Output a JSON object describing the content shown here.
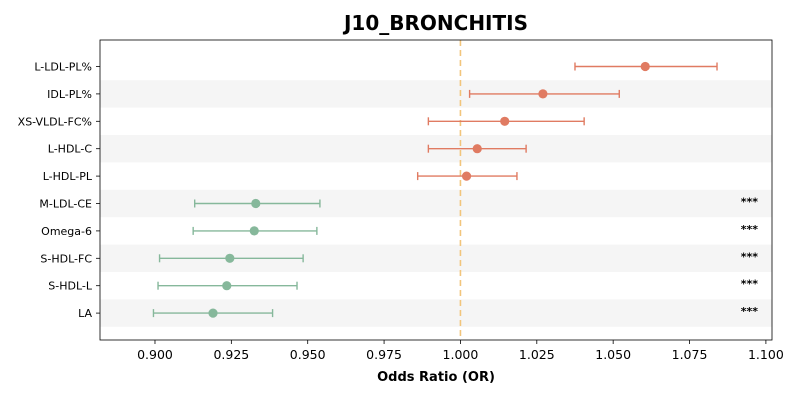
{
  "chart_data": {
    "type": "forest",
    "title": "J10_BRONCHITIS",
    "xlabel": "Odds Ratio (OR)",
    "ylabel": "",
    "xlim": [
      0.882,
      1.102
    ],
    "xticks": [
      "0.900",
      "0.925",
      "0.950",
      "0.975",
      "1.000",
      "1.025",
      "1.050",
      "1.075",
      "1.100"
    ],
    "reference_line": 1.0,
    "grid": false,
    "colors": {
      "positive": "#e07b62",
      "negative": "#86b89b",
      "reference": "#f2c57c",
      "band": "#f5f5f5"
    },
    "rows": [
      {
        "label": "L-LDL-PL%",
        "or": 1.0605,
        "lo": 1.0375,
        "hi": 1.084,
        "sig": ""
      },
      {
        "label": "IDL-PL%",
        "or": 1.027,
        "lo": 1.003,
        "hi": 1.052,
        "sig": ""
      },
      {
        "label": "XS-VLDL-FC%",
        "or": 1.0145,
        "lo": 0.9895,
        "hi": 1.0405,
        "sig": ""
      },
      {
        "label": "L-HDL-C",
        "or": 1.0055,
        "lo": 0.9895,
        "hi": 1.0215,
        "sig": ""
      },
      {
        "label": "L-HDL-PL",
        "or": 1.002,
        "lo": 0.986,
        "hi": 1.0185,
        "sig": ""
      },
      {
        "label": "M-LDL-CE",
        "or": 0.933,
        "lo": 0.913,
        "hi": 0.954,
        "sig": "***"
      },
      {
        "label": "Omega-6",
        "or": 0.9325,
        "lo": 0.9125,
        "hi": 0.953,
        "sig": "***"
      },
      {
        "label": "S-HDL-FC",
        "or": 0.9245,
        "lo": 0.9015,
        "hi": 0.9485,
        "sig": "***"
      },
      {
        "label": "S-HDL-L",
        "or": 0.9235,
        "lo": 0.901,
        "hi": 0.9465,
        "sig": "***"
      },
      {
        "label": "LA",
        "or": 0.919,
        "lo": 0.8995,
        "hi": 0.9385,
        "sig": "***"
      }
    ]
  }
}
